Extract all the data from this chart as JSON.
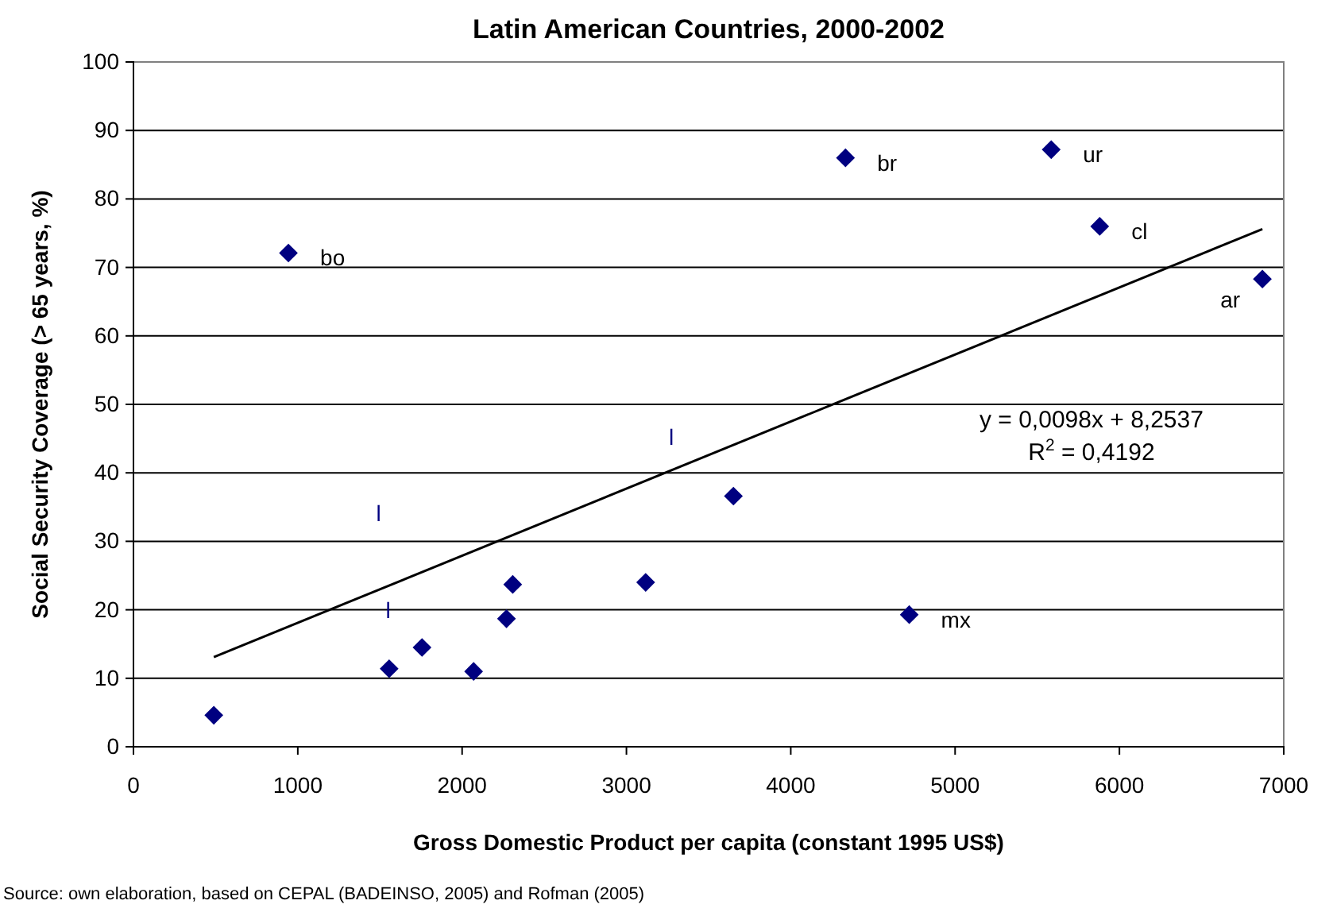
{
  "chart_data": {
    "type": "scatter",
    "title": "Latin American Countries, 2000-2002",
    "xlabel": "Gross Domestic Product per capita (constant 1995 US$)",
    "ylabel": "Social Security Coverage (> 65 years, %)",
    "xlim": [
      0,
      7000
    ],
    "xticks": [
      0,
      1000,
      2000,
      3000,
      4000,
      5000,
      6000,
      7000
    ],
    "ylim": [
      0,
      100
    ],
    "yticks": [
      0,
      10,
      20,
      30,
      40,
      50,
      60,
      70,
      80,
      90,
      100
    ],
    "grid": "y",
    "series": [
      {
        "color": "#000080",
        "marker": "diamond",
        "x": [
          489,
          943,
          1556,
          1756,
          2070,
          2270,
          2308,
          3117,
          3651,
          4333,
          4721,
          5585,
          5880,
          6870
        ],
        "values": [
          4.6,
          72.1,
          11.4,
          14.5,
          11.0,
          18.7,
          23.7,
          24.0,
          36.6,
          86.0,
          19.3,
          87.2,
          76.0,
          68.3
        ]
      },
      {
        "type": "line",
        "color": "#000000",
        "line_style": "solid",
        "marker": "none",
        "x": [
          489,
          6870
        ],
        "values": [
          13.1,
          75.6
        ]
      }
    ],
    "annotations": [
      {
        "text": "bo",
        "x": 943,
        "y": 72.1
      },
      {
        "text": "br",
        "x": 4333,
        "y": 86.0
      },
      {
        "text": "ur",
        "x": 5585,
        "y": 87.2
      },
      {
        "text": "cl",
        "x": 5880,
        "y": 76.0
      },
      {
        "text": "ar",
        "x": 6870,
        "y": 68.3
      },
      {
        "text": "mx",
        "x": 4721,
        "y": 19.3
      },
      "l",
      "l",
      "l",
      "y = 0,0098x + 8,2537",
      "R$^{2}$ = 0,4192",
      "Source: own elaboration, based on CEPAL (BADEINSO, 2005) and Rofman (2005)"
    ]
  }
}
